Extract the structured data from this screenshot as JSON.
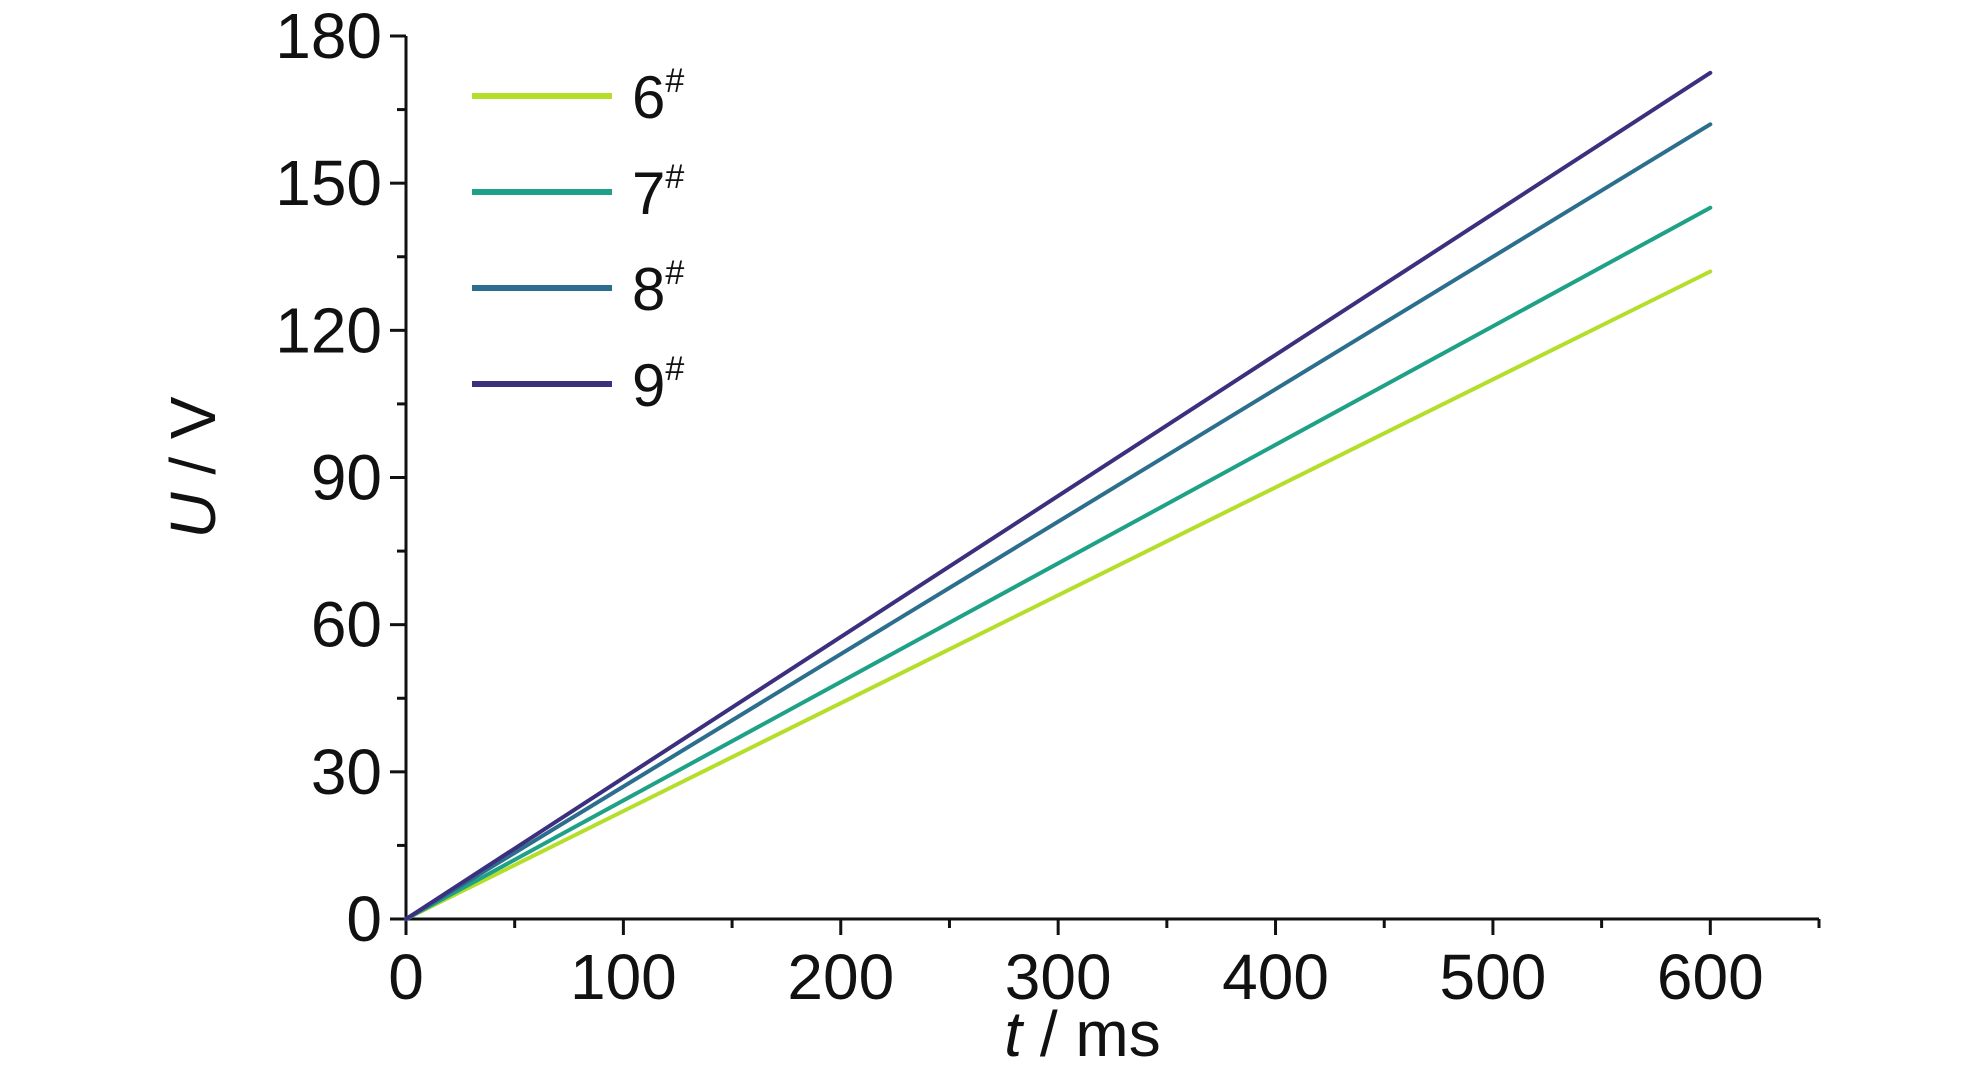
{
  "chart_data": {
    "type": "line",
    "title": "",
    "xlabel_italic": "t",
    "xlabel_rest": " / ms",
    "ylabel_italic": "U",
    "ylabel_rest": " / V",
    "xlim": [
      0,
      650
    ],
    "ylim": [
      0,
      180
    ],
    "x_ticks": [
      0,
      100,
      200,
      300,
      400,
      500,
      600
    ],
    "y_ticks": [
      0,
      30,
      60,
      90,
      120,
      150,
      180
    ],
    "x_tick_labels": [
      "0",
      "100",
      "200",
      "300",
      "400",
      "500",
      "600"
    ],
    "y_tick_labels": [
      "0",
      "30",
      "60",
      "90",
      "120",
      "150",
      "180"
    ],
    "grid": false,
    "legend_position": "top-left",
    "series": [
      {
        "name_main": "6",
        "name_sup": "#",
        "color": "#b5de2b",
        "x": [
          0,
          600
        ],
        "y": [
          0,
          132
        ]
      },
      {
        "name_main": "7",
        "name_sup": "#",
        "color": "#1fa187",
        "x": [
          0,
          600
        ],
        "y": [
          0,
          145
        ]
      },
      {
        "name_main": "8",
        "name_sup": "#",
        "color": "#2c6e8e",
        "x": [
          0,
          600
        ],
        "y": [
          0,
          162
        ]
      },
      {
        "name_main": "9",
        "name_sup": "#",
        "color": "#3b2f7e",
        "x": [
          0,
          600
        ],
        "y": [
          0,
          172.5
        ]
      }
    ]
  }
}
